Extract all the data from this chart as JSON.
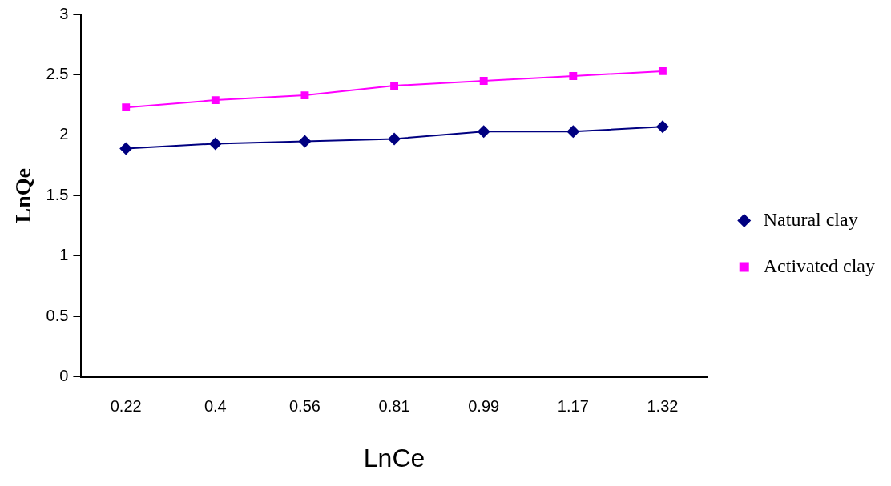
{
  "chart_data": {
    "type": "line",
    "xlabel": "LnCe",
    "ylabel": "LnQe",
    "categories": [
      "0.22",
      "0.4",
      "0.56",
      "0.81",
      "0.99",
      "1.17",
      "1.32"
    ],
    "series": [
      {
        "name": "Natural clay",
        "color": "#000080",
        "marker": "diamond",
        "values": [
          1.89,
          1.93,
          1.95,
          1.97,
          2.03,
          2.03,
          2.07
        ]
      },
      {
        "name": "Activated clay",
        "color": "#ff00ff",
        "marker": "square",
        "values": [
          2.23,
          2.29,
          2.33,
          2.41,
          2.45,
          2.49,
          2.53
        ]
      }
    ],
    "ylim": [
      0,
      3
    ],
    "yticks": [
      0,
      0.5,
      1,
      1.5,
      2,
      2.5,
      3
    ],
    "grid": false,
    "legend": "right"
  }
}
